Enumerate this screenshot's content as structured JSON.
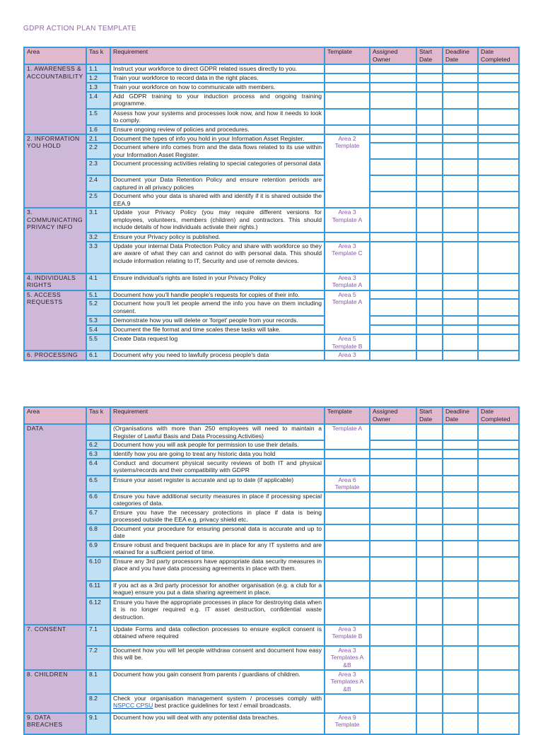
{
  "title": "GDPR ACTION PLAN TEMPLATE",
  "headers": [
    "Area",
    "Tas k",
    "Requirement",
    "Template",
    "Assigned Owner",
    "Start Date",
    "Deadline Date",
    "Date Completed"
  ],
  "tables": [
    {
      "areas": [
        {
          "label": "1. AWARENESS & ACCOUNTABILITY",
          "rows": 6
        },
        {
          "label": "2. INFORMATION YOU HOLD",
          "rows": 5
        },
        {
          "label": "3. COMMUNICATING PRIVACY INFO",
          "rows": 3
        },
        {
          "label": "4. INDIVIDUALS RIGHTS",
          "rows": 1
        },
        {
          "label": "5. ACCESS REQUESTS",
          "rows": 5
        },
        {
          "label": "6. PROCESSING",
          "rows": 1
        }
      ],
      "templates": [
        {
          "label": "",
          "rows": 1
        },
        {
          "label": "",
          "rows": 1
        },
        {
          "label": "",
          "rows": 1
        },
        {
          "label": "",
          "rows": 1
        },
        {
          "label": "",
          "rows": 1
        },
        {
          "label": "",
          "rows": 1
        },
        {
          "label": "Area 2 Template",
          "rows": 5
        },
        {
          "label": "Area 3 Template A",
          "rows": 1
        },
        {
          "label": "",
          "rows": 1
        },
        {
          "label": "Area 3 Template C",
          "rows": 1
        },
        {
          "label": "Area 3 Template A",
          "rows": 1
        },
        {
          "label": "Area 5 Template A",
          "rows": 4
        },
        {
          "label": "Area 5 Template B",
          "rows": 1
        },
        {
          "label": "Area 3",
          "rows": 1
        }
      ],
      "rows": [
        {
          "task": "1.1",
          "req": "Instruct your workforce to direct GDPR related issues directly to you."
        },
        {
          "task": "1.2",
          "req": "Train your workforce to record data in the right places."
        },
        {
          "task": "1.3",
          "req": "Train your workforce on how to communicate with members."
        },
        {
          "task": "1.4",
          "req": "Add GDPR training to your induction process and ongoing training programme."
        },
        {
          "task": "1.5",
          "req": "Assess how your systems and processes look now, and how it needs to look to comply."
        },
        {
          "task": "1.6",
          "req": "Ensure ongoing review of policies and procedures."
        },
        {
          "task": "2.1",
          "req": "Document the types of info you hold in your Information Asset Register."
        },
        {
          "task": "2.2",
          "req": "Document where info comes from and the data flows related to its use within your Information Asset Register."
        },
        {
          "task": "2.3",
          "req": "Document processing activities relating to special categories of personal data"
        },
        {
          "task": "2.4",
          "req": "Document your Data Retention Policy and ensure retention periods are captured in all privacy policies"
        },
        {
          "task": "2.5",
          "req": "Document who your data is shared with and identify if it is shared outside the EEA.9"
        },
        {
          "task": "3.1",
          "req": "Update your Privacy Policy (you may require different versions for employees, volunteers, members (children) and contractors. This should include details of how individuals activate their rights.)"
        },
        {
          "task": "3.2",
          "req": "Ensure your Privacy policy is published."
        },
        {
          "task": "3.3",
          "req": "Update your internal Data Protection Policy and share with workforce so they are aware of what they can and cannot do with personal data. This should include information relating to IT, Security and use of remote devices."
        },
        {
          "task": "4.1",
          "req": "Ensure individual's rights are listed in your Privacy Policy"
        },
        {
          "task": "5.1",
          "req": "Document how you'll handle people's requests for copies of their info."
        },
        {
          "task": "5.2",
          "req": "Document how you'll let people amend the info you have on them including consent."
        },
        {
          "task": "5.3",
          "req": "Demonstrate how you will delete or 'forget' people from your records."
        },
        {
          "task": "5.4",
          "req": "Document the file format and time scales these tasks will take."
        },
        {
          "task": "5.5",
          "req": "Create Data request log"
        },
        {
          "task": "6.1",
          "req": "Document why you need to lawfully process people's data"
        }
      ]
    },
    {
      "areas": [
        {
          "label": "DATA",
          "rows": 12
        },
        {
          "label": "7. CONSENT",
          "rows": 2
        },
        {
          "label": "8. CHILDREN",
          "rows": 2
        },
        {
          "label": "9. DATA BREACHES",
          "rows": 1
        }
      ],
      "templates": [
        {
          "label": "Template A",
          "rows": 2
        },
        {
          "label": "",
          "rows": 1
        },
        {
          "label": "",
          "rows": 1
        },
        {
          "label": "Area 6 Template",
          "rows": 1
        },
        {
          "label": "",
          "rows": 1
        },
        {
          "label": "",
          "rows": 1
        },
        {
          "label": "",
          "rows": 1
        },
        {
          "label": "",
          "rows": 1
        },
        {
          "label": "",
          "rows": 1
        },
        {
          "label": "",
          "rows": 1
        },
        {
          "label": "",
          "rows": 1
        },
        {
          "label": "Area 3 Template B",
          "rows": 1
        },
        {
          "label": "Area 3 Templates A &B",
          "rows": 1
        },
        {
          "label": "Area 3 Templates A &B",
          "rows": 1
        },
        {
          "label": "",
          "rows": 1
        },
        {
          "label": "Area 9 Template",
          "rows": 1
        }
      ],
      "rows": [
        {
          "task": "",
          "req": "(Organisations with more than 250 employees will need to maintain a Register of Lawful Basis and Data Processing Activities)"
        },
        {
          "task": "6.2",
          "req": "Document how you will ask people for permission to use their details."
        },
        {
          "task": "6.3",
          "req": "Identify how you are going to treat any historic data you hold"
        },
        {
          "task": "6.4",
          "req": "Conduct and document physical security reviews of both IT and physical systems/records and their compatibility with GDPR"
        },
        {
          "task": "6.5",
          "req": "Ensure your asset register is accurate and up to date (if applicable)"
        },
        {
          "task": "6.6",
          "req": "Ensure you have additional security measures in place if processing special categories of data."
        },
        {
          "task": "6.7",
          "req": "Ensure you have the necessary protections in place if data is being processed outside the EEA e.g. privacy shield etc."
        },
        {
          "task": "6.8",
          "req": "Document your procedure for ensuring personal data is accurate and up to date"
        },
        {
          "task": "6.9",
          "req": "Ensure robust and frequent backups are in place for any IT systems and are retained for a sufficient period of time."
        },
        {
          "task": "6.10",
          "req": "Ensure any 3rd party processors have appropriate data security measures in place and you have data processing agreements in place with them."
        },
        {
          "task": "6.11",
          "req": "If you act as a 3rd party processor for another organisation (e.g. a club for a league) ensure you put a data sharing agreement in place."
        },
        {
          "task": "6.12",
          "req": "Ensure you have the appropriate processes in place for destroying data when it is no longer required e.g. IT asset destruction, confidential waste destruction."
        },
        {
          "task": "7.1",
          "req": "Update Forms and data collection processes to ensure explicit consent is obtained where required"
        },
        {
          "task": "7.2",
          "req": "Document how you will let people withdraw consent and document how easy this will be."
        },
        {
          "task": "8.1",
          "req": "Document how you gain consent from parents / guardians of children."
        },
        {
          "task": "8.2",
          "req": "Check your organisation management system / processes comply with ",
          "link": "NSPCC CPSU",
          "req_after": " best practice guidelines for text / email broadcasts."
        },
        {
          "task": "9.1",
          "req": "Document how you will deal with any potential data breaches."
        }
      ]
    }
  ]
}
